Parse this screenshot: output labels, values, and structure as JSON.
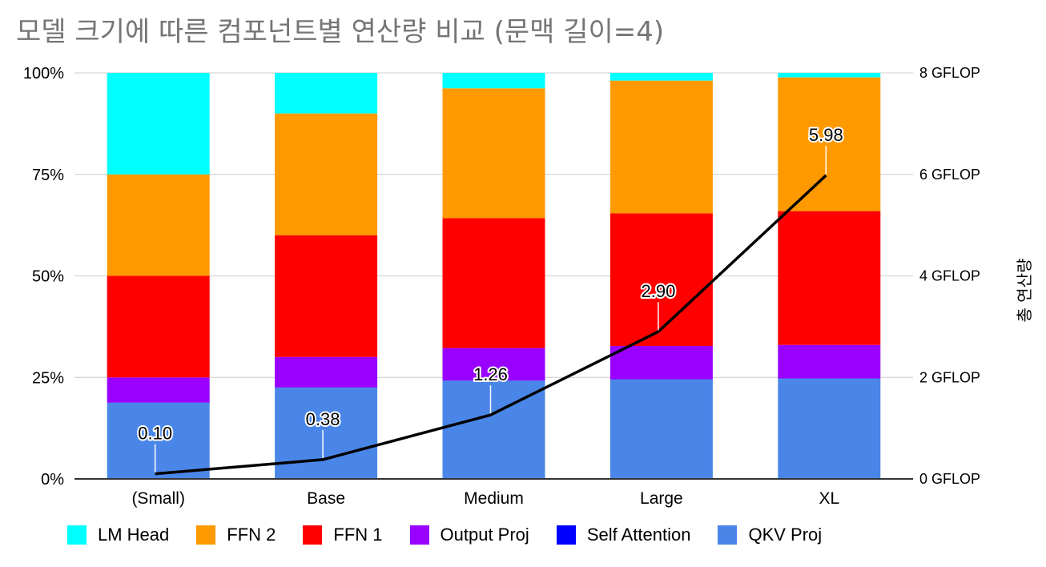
{
  "chart_data": {
    "type": "bar",
    "stacked": "percent",
    "title": "모델 크기에 따른 컴포넌트별 연산량 비교 (문맥 길이=4)",
    "categories": [
      "(Small)",
      "Base",
      "Medium",
      "Large",
      "XL"
    ],
    "left_axis": {
      "ticks": [
        "0%",
        "25%",
        "50%",
        "75%",
        "100%"
      ],
      "ylim": [
        0,
        100
      ]
    },
    "right_axis": {
      "label": "총 연산량",
      "ticks": [
        "0 GFLOP",
        "2 GFLOP",
        "4 GFLOP",
        "6 GFLOP",
        "8 GFLOP"
      ],
      "ylim": [
        0,
        8
      ]
    },
    "series": [
      {
        "name": "QKV Proj",
        "color": "#4a86e8",
        "values": [
          18.75,
          22.5,
          24.2,
          24.5,
          24.6
        ]
      },
      {
        "name": "Self Attention",
        "color": "#0000ff",
        "values": [
          0.05,
          0.05,
          0.05,
          0.05,
          0.05
        ]
      },
      {
        "name": "Output Proj",
        "color": "#9900ff",
        "values": [
          6.2,
          7.5,
          8.0,
          8.2,
          8.2
        ]
      },
      {
        "name": "FFN 1",
        "color": "#ff0000",
        "values": [
          25.0,
          30.0,
          32.0,
          32.7,
          32.8
        ]
      },
      {
        "name": "FFN 2",
        "color": "#ff9900",
        "values": [
          25.0,
          30.0,
          32.0,
          32.7,
          32.8
        ]
      },
      {
        "name": "LM Head",
        "color": "#00ffff",
        "values": [
          25.0,
          10.0,
          3.8,
          1.9,
          1.1
        ]
      }
    ],
    "line": {
      "name": "총 연산량",
      "color": "#000000",
      "values": [
        0.1,
        0.38,
        1.26,
        2.9,
        5.98
      ],
      "labels": [
        "0.10",
        "0.38",
        "1.26",
        "2.90",
        "5.98"
      ]
    },
    "legend": {
      "position": "bottom",
      "order": [
        "LM Head",
        "FFN 2",
        "FFN 1",
        "Output Proj",
        "Self Attention",
        "QKV Proj"
      ]
    }
  }
}
